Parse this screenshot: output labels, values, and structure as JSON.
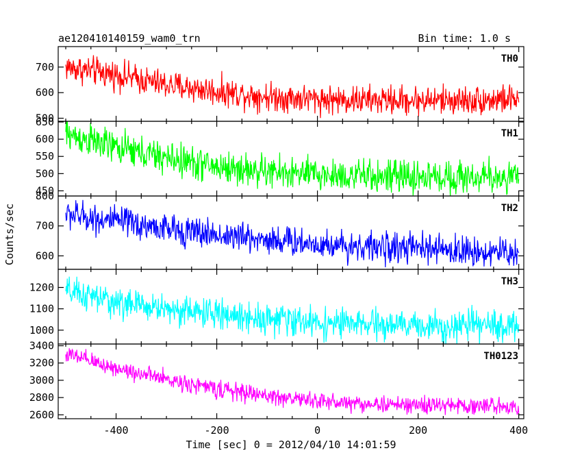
{
  "chart_data": {
    "type": "line",
    "title_left": "ae120410140159_wam0_trn",
    "title_right": "Bin time: 1.0 s",
    "xlabel": "Time [sec] 0 = 2012/04/10 14:01:59",
    "ylabel": "Counts/sec",
    "xlim": [
      -515,
      410
    ],
    "x_ticks": [
      -400,
      -200,
      0,
      200,
      400
    ],
    "x_start": -500,
    "x_end": 400,
    "bin_time": 1.0,
    "panels": [
      {
        "name": "TH0",
        "color": "#ff0000",
        "ylim": [
          488,
          780
        ],
        "y_ticks": [
          500,
          600,
          700
        ],
        "trend": [
          [
            -500,
            700
          ],
          [
            -400,
            670
          ],
          [
            -300,
            630
          ],
          [
            -200,
            605
          ],
          [
            -100,
            585
          ],
          [
            0,
            575
          ],
          [
            100,
            570
          ],
          [
            200,
            570
          ],
          [
            300,
            570
          ],
          [
            400,
            575
          ]
        ],
        "noise": 28
      },
      {
        "name": "TH1",
        "color": "#00ff00",
        "ylim": [
          435,
          652
        ],
        "y_ticks": [
          450,
          500,
          550,
          600,
          650
        ],
        "trend": [
          [
            -500,
            615
          ],
          [
            -400,
            575
          ],
          [
            -300,
            545
          ],
          [
            -200,
            520
          ],
          [
            -100,
            505
          ],
          [
            0,
            497
          ],
          [
            100,
            492
          ],
          [
            200,
            490
          ],
          [
            300,
            490
          ],
          [
            400,
            490
          ]
        ],
        "noise": 24
      },
      {
        "name": "TH2",
        "color": "#0000ff",
        "ylim": [
          555,
          800
        ],
        "y_ticks": [
          600,
          700,
          800
        ],
        "trend": [
          [
            -500,
            740
          ],
          [
            -400,
            715
          ],
          [
            -300,
            690
          ],
          [
            -200,
            670
          ],
          [
            -100,
            655
          ],
          [
            0,
            640
          ],
          [
            100,
            630
          ],
          [
            200,
            625
          ],
          [
            300,
            615
          ],
          [
            400,
            610
          ]
        ],
        "noise": 25
      },
      {
        "name": "TH3",
        "color": "#00ffff",
        "ylim": [
          935,
          1285
        ],
        "y_ticks": [
          1000,
          1100,
          1200
        ],
        "trend": [
          [
            -500,
            1180
          ],
          [
            -400,
            1130
          ],
          [
            -300,
            1100
          ],
          [
            -200,
            1075
          ],
          [
            -100,
            1055
          ],
          [
            0,
            1035
          ],
          [
            100,
            1025
          ],
          [
            200,
            1020
          ],
          [
            300,
            1020
          ],
          [
            400,
            1020
          ]
        ],
        "noise": 35
      },
      {
        "name": "TH0123",
        "color": "#ff00ff",
        "ylim": [
          2555,
          3420
        ],
        "y_ticks": [
          2600,
          2800,
          3000,
          3200,
          3400
        ],
        "trend": [
          [
            -500,
            3300
          ],
          [
            -400,
            3140
          ],
          [
            -300,
            3010
          ],
          [
            -200,
            2900
          ],
          [
            -100,
            2820
          ],
          [
            0,
            2760
          ],
          [
            100,
            2725
          ],
          [
            200,
            2710
          ],
          [
            300,
            2705
          ],
          [
            400,
            2700
          ]
        ],
        "noise": 50
      }
    ]
  }
}
